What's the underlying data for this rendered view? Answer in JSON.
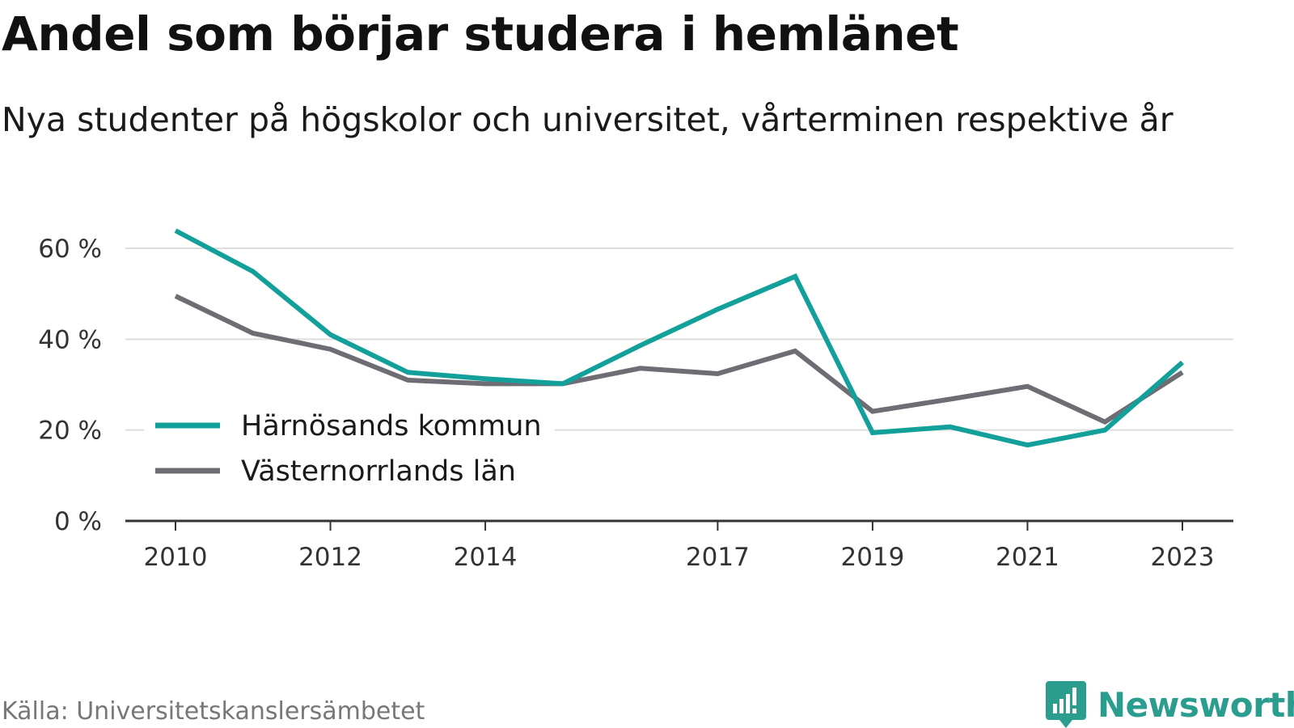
{
  "header": {
    "title": "Andel som börjar studera i hemlänet",
    "subtitle": "Nya studenter på högskolor och universitet, vårterminen respektive år"
  },
  "footer": {
    "source": "Källa: Universitetskanslersämbetet",
    "brand": "Newsworthy"
  },
  "colors": {
    "series_1": "#14a09a",
    "series_2": "#6e6d73",
    "grid": "#dddddd",
    "axis": "#333333",
    "brand": "#2a9d8f"
  },
  "chart_data": {
    "type": "line",
    "title": "Andel som börjar studera i hemlänet",
    "subtitle": "Nya studenter på högskolor och universitet, vårterminen respektive år",
    "x": [
      2010,
      2011,
      2012,
      2013,
      2014,
      2015,
      2016,
      2017,
      2018,
      2019,
      2020,
      2021,
      2022,
      2023
    ],
    "x_ticks": [
      "2010",
      "2012",
      "2014",
      "2017",
      "2019",
      "2021",
      "2023"
    ],
    "y_ticks": [
      0,
      20,
      40,
      60
    ],
    "y_tick_labels": [
      "0 %",
      "20 %",
      "40 %",
      "60 %"
    ],
    "ylim": [
      0,
      64
    ],
    "grid": true,
    "legend_position": "bottom-left",
    "series": [
      {
        "name": "Härnösands kommun",
        "color": "#14a09a",
        "values": [
          63.9,
          54.9,
          41.0,
          32.7,
          31.3,
          30.2,
          38.6,
          46.6,
          53.8,
          19.4,
          20.7,
          16.7,
          20.0,
          34.9
        ]
      },
      {
        "name": "Västernorrlands län",
        "color": "#6e6d73",
        "values": [
          49.5,
          41.3,
          37.8,
          31.0,
          30.2,
          30.2,
          33.6,
          32.4,
          37.4,
          24.1,
          26.8,
          29.6,
          21.8,
          32.7
        ]
      }
    ]
  }
}
